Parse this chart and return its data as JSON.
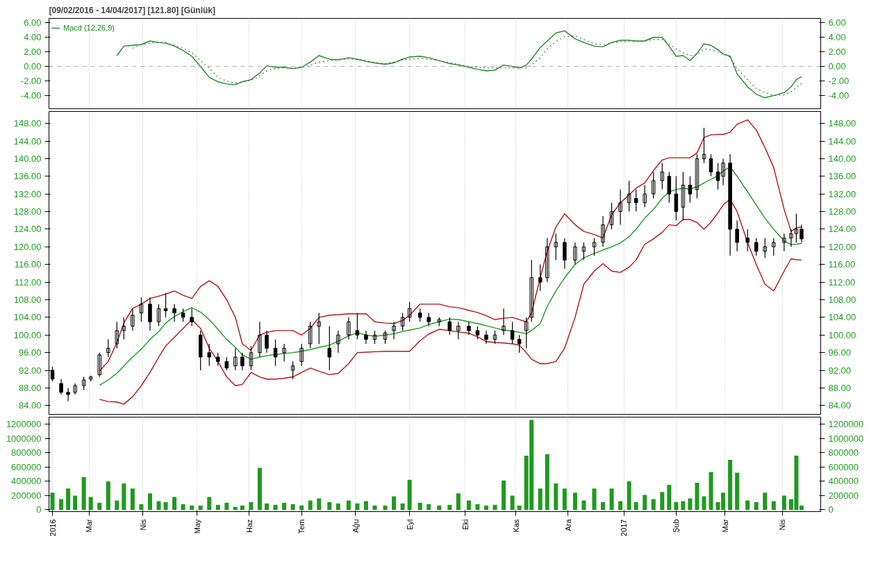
{
  "chart_data": [
    {
      "type": "line",
      "title": "[09/02/2016 - 14/04/2017] [121.80] [Günlük]",
      "x": [
        "2016-03-17",
        "2016-03-21",
        "2016-03-26",
        "2016-03-31",
        "2016-04-05",
        "2016-04-10",
        "2016-04-14",
        "2016-04-19",
        "2016-04-24",
        "2016-04-29",
        "2016-05-04",
        "2016-05-09",
        "2016-05-14",
        "2016-05-19",
        "2016-05-24",
        "2016-05-28",
        "2016-06-02",
        "2016-06-07",
        "2016-06-11",
        "2016-06-16",
        "2016-06-21",
        "2016-06-26",
        "2016-07-01",
        "2016-07-06",
        "2016-07-11",
        "2016-07-17",
        "2016-07-22",
        "2016-07-28",
        "2016-08-02",
        "2016-08-07",
        "2016-08-12",
        "2016-08-18",
        "2016-08-23",
        "2016-08-28",
        "2016-09-01",
        "2016-09-07",
        "2016-09-12",
        "2016-09-18",
        "2016-09-24",
        "2016-09-29",
        "2016-10-05",
        "2016-10-10",
        "2016-10-15",
        "2016-10-20",
        "2016-10-25",
        "2016-10-30",
        "2016-11-03",
        "2016-11-07",
        "2016-11-10",
        "2016-11-15",
        "2016-11-19",
        "2016-11-24",
        "2016-11-29",
        "2016-12-05",
        "2016-12-10",
        "2016-12-16",
        "2016-12-21",
        "2016-12-26",
        "2016-12-31",
        "2017-01-05",
        "2017-01-09",
        "2017-01-14",
        "2017-01-19",
        "2017-01-24",
        "2017-01-28",
        "2017-02-01",
        "2017-02-05",
        "2017-02-09",
        "2017-02-13",
        "2017-02-17",
        "2017-02-21",
        "2017-02-25",
        "2017-02-28",
        "2017-03-04",
        "2017-03-08",
        "2017-03-14",
        "2017-03-19",
        "2017-03-24",
        "2017-03-29",
        "2017-04-04",
        "2017-04-08",
        "2017-04-11",
        "2017-04-14"
      ],
      "series": [
        {
          "name": "Macd (12,26,9)",
          "color": "#1e8c1e",
          "values": [
            1.5,
            2.8,
            2.9,
            3.0,
            3.5,
            3.3,
            3.2,
            2.8,
            2.2,
            1.4,
            0.0,
            -1.5,
            -2.1,
            -2.4,
            -2.5,
            -2.1,
            -1.8,
            -0.9,
            0.1,
            -0.1,
            -0.1,
            -0.3,
            -0.1,
            0.6,
            1.5,
            1.0,
            0.9,
            1.2,
            1.0,
            0.7,
            0.5,
            0.3,
            0.5,
            1.0,
            1.3,
            1.4,
            1.2,
            0.8,
            0.4,
            0.2,
            -0.1,
            -0.4,
            -0.6,
            -0.5,
            0.2,
            0.0,
            -0.2,
            0.2,
            1.0,
            2.6,
            3.5,
            4.6,
            4.9,
            3.8,
            3.3,
            2.8,
            2.7,
            3.3,
            3.6,
            3.6,
            3.5,
            3.5,
            4.0,
            4.0,
            2.8,
            1.4,
            1.5,
            0.8,
            1.8,
            3.1,
            2.9,
            2.3,
            1.7,
            1.4,
            -1.0,
            -2.8,
            -3.8,
            -4.3,
            -4.0,
            -3.6,
            -2.8,
            -1.8,
            -1.4
          ]
        },
        {
          "color": "#555555",
          "line_style": "dotted",
          "values": [
            null,
            null,
            2.5,
            3.0,
            3.2,
            3.3,
            3.3,
            2.9,
            2.5,
            1.9,
            0.8,
            -0.2,
            -1.5,
            -2.0,
            -2.3,
            -2.1,
            -1.9,
            -1.3,
            -0.6,
            -0.3,
            -0.2,
            -0.2,
            -0.2,
            0.2,
            0.6,
            0.8,
            1.0,
            1.0,
            1.0,
            0.8,
            0.5,
            0.4,
            0.6,
            0.9,
            1.0,
            1.1,
            1.0,
            0.8,
            0.5,
            0.3,
            0.0,
            -0.1,
            -0.2,
            -0.2,
            -0.2,
            -0.2,
            -0.2,
            -0.2,
            0.2,
            1.2,
            2.4,
            3.4,
            4.1,
            4.2,
            3.7,
            3.1,
            3.0,
            3.2,
            3.4,
            3.4,
            3.4,
            3.5,
            3.7,
            3.7,
            3.1,
            2.4,
            1.9,
            1.5,
            1.6,
            2.4,
            2.3,
            2.0,
            1.8,
            1.3,
            -0.3,
            -1.8,
            -3.0,
            -3.6,
            -4.0,
            -3.9,
            -3.5,
            -2.9,
            -2.3
          ]
        }
      ],
      "legend": "top left",
      "ref_lines": [
        {
          "axis": "y",
          "value": 0,
          "color": "#aaaaaa",
          "line_style": "dashed"
        }
      ],
      "xlim": [
        "2016-02-07",
        "2017-04-25"
      ],
      "xticks": [
        "2016-03-01",
        "2016-04-01",
        "2016-05-02",
        "2016-06-01",
        "2016-07-01",
        "2016-08-01",
        "2016-09-01",
        "2016-10-03",
        "2016-11-01",
        "2016-12-01",
        "2017-01-02",
        "2017-02-01",
        "2017-03-01",
        "2017-04-03"
      ],
      "ylim": [
        -5.8,
        6.6
      ],
      "yticks": [
        {
          "value": -4,
          "label": "-4.00"
        },
        {
          "value": -2,
          "label": "-2.00"
        },
        {
          "value": 0,
          "label": "0.00"
        },
        {
          "value": 2,
          "label": "2.00"
        },
        {
          "value": 4,
          "label": "4.00"
        },
        {
          "value": 6,
          "label": "6.00"
        }
      ],
      "y2lim": [
        -5.8,
        6.6
      ],
      "y2ticks": [
        {
          "value": -4,
          "label": "-4.00"
        },
        {
          "value": -2,
          "label": "-2.00"
        },
        {
          "value": 0,
          "label": "0.00"
        },
        {
          "value": 2,
          "label": "2.00"
        },
        {
          "value": 4,
          "label": "4.00"
        },
        {
          "value": 6,
          "label": "6.00"
        }
      ],
      "grid": "x",
      "tick_labels": "y"
    },
    {
      "type": "candlestick",
      "color": "#000000",
      "x": [
        "2016-02-09",
        "2016-02-14",
        "2016-02-18",
        "2016-02-22",
        "2016-02-27",
        "2016-03-02",
        "2016-03-07",
        "2016-03-12",
        "2016-03-17",
        "2016-03-21",
        "2016-03-26",
        "2016-03-31",
        "2016-04-05",
        "2016-04-10",
        "2016-04-14",
        "2016-04-19",
        "2016-04-24",
        "2016-04-29",
        "2016-05-04",
        "2016-05-09",
        "2016-05-14",
        "2016-05-19",
        "2016-05-24",
        "2016-05-28",
        "2016-06-02",
        "2016-06-07",
        "2016-06-11",
        "2016-06-16",
        "2016-06-21",
        "2016-06-26",
        "2016-07-01",
        "2016-07-06",
        "2016-07-11",
        "2016-07-17",
        "2016-07-22",
        "2016-07-28",
        "2016-08-02",
        "2016-08-07",
        "2016-08-12",
        "2016-08-18",
        "2016-08-23",
        "2016-08-28",
        "2016-09-01",
        "2016-09-07",
        "2016-09-12",
        "2016-09-18",
        "2016-09-24",
        "2016-09-29",
        "2016-10-05",
        "2016-10-10",
        "2016-10-15",
        "2016-10-20",
        "2016-10-25",
        "2016-10-30",
        "2016-11-03",
        "2016-11-07",
        "2016-11-10",
        "2016-11-15",
        "2016-11-19",
        "2016-11-24",
        "2016-11-29",
        "2016-12-05",
        "2016-12-10",
        "2016-12-16",
        "2016-12-21",
        "2016-12-26",
        "2016-12-31",
        "2017-01-05",
        "2017-01-09",
        "2017-01-14",
        "2017-01-19",
        "2017-01-24",
        "2017-01-28",
        "2017-02-01",
        "2017-02-05",
        "2017-02-09",
        "2017-02-13",
        "2017-02-17",
        "2017-02-21",
        "2017-02-25",
        "2017-02-28",
        "2017-03-04",
        "2017-03-08",
        "2017-03-14",
        "2017-03-19",
        "2017-03-24",
        "2017-03-29",
        "2017-04-04",
        "2017-04-08",
        "2017-04-11",
        "2017-04-14"
      ],
      "ohlc": [
        [
          92,
          92.8,
          89.5,
          90
        ],
        [
          89,
          90,
          86.5,
          87
        ],
        [
          87,
          88,
          85,
          86.5
        ],
        [
          87,
          89,
          86.5,
          88.5
        ],
        [
          88.5,
          90.5,
          87.5,
          89.8
        ],
        [
          90,
          90.8,
          89.5,
          90.5
        ],
        [
          91,
          96,
          90.5,
          95.5
        ],
        [
          96,
          99,
          95,
          97
        ],
        [
          98,
          103,
          97,
          101
        ],
        [
          101,
          104,
          99,
          102
        ],
        [
          102,
          106,
          101,
          104.5
        ],
        [
          105,
          108.5,
          103,
          107
        ],
        [
          107,
          108.5,
          101,
          103
        ],
        [
          103,
          107,
          102,
          106
        ],
        [
          106,
          109.5,
          104,
          105.5
        ],
        [
          106,
          107,
          103,
          105
        ],
        [
          105,
          106,
          103,
          104
        ],
        [
          104,
          106,
          102,
          103
        ],
        [
          100,
          101,
          92,
          95
        ],
        [
          96,
          98,
          93,
          95
        ],
        [
          95,
          96,
          93,
          94
        ],
        [
          94,
          95,
          92,
          92.5
        ],
        [
          93,
          97,
          92,
          95
        ],
        [
          95,
          96,
          92,
          93
        ],
        [
          93,
          97.5,
          92,
          96
        ],
        [
          96,
          103,
          95,
          100
        ],
        [
          100,
          101,
          96,
          97
        ],
        [
          97,
          99,
          93,
          95
        ],
        [
          96,
          98,
          94,
          97
        ],
        [
          92,
          94,
          90,
          93
        ],
        [
          94,
          98,
          93,
          97
        ],
        [
          98,
          103,
          97,
          102
        ],
        [
          102,
          105,
          98,
          103
        ],
        [
          97,
          102,
          92,
          95
        ],
        [
          98,
          101,
          96,
          100
        ],
        [
          100,
          104,
          99,
          103
        ],
        [
          101,
          105,
          99,
          100
        ],
        [
          100,
          101,
          98,
          99
        ],
        [
          99,
          101,
          98,
          100
        ],
        [
          99,
          101,
          98,
          100.5
        ],
        [
          101,
          103,
          99,
          102
        ],
        [
          102,
          105,
          101,
          104
        ],
        [
          104,
          107.5,
          103,
          106
        ],
        [
          105,
          106,
          103,
          104
        ],
        [
          104,
          105,
          102,
          103
        ],
        [
          103,
          104,
          102,
          103.5
        ],
        [
          103,
          104,
          100,
          101
        ],
        [
          101,
          103,
          99,
          102
        ],
        [
          102,
          103,
          100,
          101
        ],
        [
          101,
          102,
          99,
          100
        ],
        [
          100,
          101,
          98,
          99
        ],
        [
          99,
          101,
          98,
          100
        ],
        [
          101,
          106,
          100,
          102
        ],
        [
          101,
          103,
          98,
          99
        ],
        [
          99,
          100,
          96,
          98
        ],
        [
          101,
          104,
          97,
          103
        ],
        [
          104,
          117,
          103,
          113
        ],
        [
          113,
          116,
          110,
          112
        ],
        [
          113,
          122,
          112,
          120
        ],
        [
          120,
          123,
          117,
          121
        ],
        [
          121,
          122,
          115,
          117
        ],
        [
          117,
          121,
          116,
          120
        ],
        [
          119,
          121,
          117,
          120
        ],
        [
          120,
          122,
          118,
          121
        ],
        [
          121,
          127,
          120,
          125
        ],
        [
          125,
          130,
          124,
          128
        ],
        [
          128,
          133,
          125,
          130
        ],
        [
          130,
          135,
          128,
          132
        ],
        [
          131,
          133,
          128,
          130
        ],
        [
          130,
          134,
          129,
          132
        ],
        [
          132,
          137,
          131,
          135
        ],
        [
          135,
          139,
          133,
          137
        ],
        [
          136,
          137,
          130,
          132
        ],
        [
          132,
          136,
          126,
          128
        ],
        [
          129,
          137,
          126,
          134
        ],
        [
          134,
          136,
          130,
          132
        ],
        [
          133,
          141,
          131,
          140
        ],
        [
          140,
          147,
          139,
          141
        ],
        [
          140,
          141,
          136,
          137
        ],
        [
          137,
          139,
          133,
          135
        ],
        [
          136,
          140,
          134,
          139
        ],
        [
          139,
          141,
          118,
          124
        ],
        [
          124,
          126,
          119,
          121
        ],
        [
          122,
          124,
          119,
          121
        ],
        [
          121,
          122,
          118,
          119
        ],
        [
          119,
          122,
          117.5,
          120
        ],
        [
          120,
          122,
          118,
          121
        ],
        [
          121,
          123,
          119,
          122
        ],
        [
          122,
          124,
          120,
          123
        ],
        [
          123,
          127.5,
          121,
          124
        ],
        [
          124,
          125,
          121,
          121.8
        ]
      ],
      "xticks": [
        "2016-03-01",
        "2016-04-01",
        "2016-05-02",
        "2016-06-01",
        "2016-07-01",
        "2016-08-01",
        "2016-09-01",
        "2016-10-03",
        "2016-11-01",
        "2016-12-01",
        "2017-01-02",
        "2017-02-01",
        "2017-03-01",
        "2017-04-03"
      ],
      "series": [
        {
          "type": "line",
          "color": "#b01515",
          "values": [
            null,
            null,
            null,
            null,
            null,
            null,
            91.8,
            94,
            98.3,
            102.7,
            106,
            107,
            108.3,
            108.8,
            109.3,
            110,
            109,
            108.3,
            111,
            112.3,
            111,
            108,
            104,
            98,
            96.5,
            100,
            100.6,
            101,
            101,
            101,
            100,
            101.5,
            104,
            104.5,
            104.6,
            104.8,
            104.8,
            104.8,
            103,
            102.7,
            102.6,
            103.3,
            104.5,
            107,
            107,
            107,
            106.4,
            106.2,
            105.6,
            105.1,
            104.4,
            103.5,
            103.8,
            104,
            103.5,
            103,
            105,
            113,
            119,
            124.5,
            127.5,
            125,
            123.5,
            122.8,
            122,
            127.3,
            130,
            131.8,
            133.3,
            134.5,
            137.3,
            139.7,
            140.2,
            140.2,
            140.2,
            140.2,
            141.3,
            144.8,
            145.4,
            145.5,
            145.5,
            146,
            147.8,
            148.8,
            146.5,
            142.5,
            138,
            128.5,
            123.5,
            124.3,
            124.5
          ]
        },
        {
          "type": "line",
          "color": "#1f9a1f",
          "values": [
            null,
            null,
            null,
            null,
            null,
            null,
            88.6,
            89.8,
            91.3,
            93,
            95,
            96.8,
            99,
            100.8,
            102.7,
            104.2,
            105.3,
            106.2,
            105.2,
            103.5,
            101.3,
            99,
            97.2,
            95.5,
            94.5,
            95,
            95.3,
            95.6,
            95.8,
            96,
            96.3,
            96.7,
            97.2,
            97.7,
            98.6,
            99.8,
            100.5,
            100,
            99.7,
            100,
            100.3,
            100.8,
            101.1,
            101.6,
            102.4,
            103,
            103.6,
            103.5,
            103,
            102.6,
            102.1,
            101.6,
            101.1,
            100.9,
            100.6,
            100.3,
            101,
            102.6,
            106.5,
            110,
            113,
            116,
            117.5,
            118.5,
            119.3,
            120,
            120.9,
            122.3,
            124,
            126.5,
            128.5,
            131,
            132.5,
            133,
            133.3,
            133.1,
            133.6,
            134.5,
            135.3,
            136.2,
            137.2,
            138.1,
            136,
            132.5,
            129.5,
            126.5,
            124,
            121.3,
            120.5,
            120.6,
            120.8
          ]
        },
        {
          "type": "line",
          "color": "#b01515",
          "values": [
            null,
            null,
            null,
            null,
            null,
            null,
            85.4,
            84.9,
            84.8,
            84.3,
            86,
            88.5,
            91.5,
            95,
            97.5,
            99.5,
            101.5,
            103.5,
            101.5,
            97,
            94,
            90.5,
            88.5,
            88.8,
            91.5,
            90.5,
            90,
            90,
            90.2,
            90.5,
            91.5,
            92.5,
            91.8,
            91,
            91.3,
            93.5,
            96,
            96.1,
            96.2,
            96.3,
            96.3,
            96.3,
            96.3,
            98.7,
            100.2,
            101.3,
            101,
            100.7,
            100.4,
            99.6,
            98.5,
            98.3,
            98.2,
            98,
            97.7,
            96,
            94.5,
            93.5,
            93.5,
            94,
            97,
            104,
            111.5,
            114.5,
            116.2,
            114.5,
            114.2,
            115.4,
            117,
            120.6,
            121.8,
            123.3,
            125,
            124.8,
            126.2,
            126.2,
            125.5,
            124,
            125.6,
            127.7,
            129.5,
            130.8,
            128,
            121,
            116,
            111.5,
            110,
            114.5,
            117.3,
            117.1,
            117
          ]
        }
      ],
      "xlim": [
        "2016-02-07",
        "2017-04-25"
      ],
      "ylim": [
        82,
        150.7
      ],
      "yticks": [
        {
          "value": 84,
          "label": "84.00"
        },
        {
          "value": 88,
          "label": "88.00"
        },
        {
          "value": 92,
          "label": "92.00"
        },
        {
          "value": 96,
          "label": "96.00"
        },
        {
          "value": 100,
          "label": "100.00"
        },
        {
          "value": 104,
          "label": "104.00"
        },
        {
          "value": 108,
          "label": "108.00"
        },
        {
          "value": 112,
          "label": "112.00"
        },
        {
          "value": 116,
          "label": "116.00"
        },
        {
          "value": 120,
          "label": "120.00"
        },
        {
          "value": 124,
          "label": "124.00"
        },
        {
          "value": 128,
          "label": "128.00"
        },
        {
          "value": 132,
          "label": "132.00"
        },
        {
          "value": 136,
          "label": "136.00"
        },
        {
          "value": 140,
          "label": "140.00"
        },
        {
          "value": 144,
          "label": "144.00"
        },
        {
          "value": 148,
          "label": "148.00"
        }
      ],
      "y2lim": [
        82,
        150.7
      ],
      "y2ticks": [
        {
          "value": 84,
          "label": "84.00"
        },
        {
          "value": 88,
          "label": "88.00"
        },
        {
          "value": 92,
          "label": "92.00"
        },
        {
          "value": 96,
          "label": "96.00"
        },
        {
          "value": 100,
          "label": "100.00"
        },
        {
          "value": 104,
          "label": "104.00"
        },
        {
          "value": 108,
          "label": "108.00"
        },
        {
          "value": 112,
          "label": "112.00"
        },
        {
          "value": 116,
          "label": "116.00"
        },
        {
          "value": 120,
          "label": "120.00"
        },
        {
          "value": 124,
          "label": "124.00"
        },
        {
          "value": 128,
          "label": "128.00"
        },
        {
          "value": 132,
          "label": "132.00"
        },
        {
          "value": 136,
          "label": "136.00"
        },
        {
          "value": 140,
          "label": "140.00"
        },
        {
          "value": 144,
          "label": "144.00"
        },
        {
          "value": 148,
          "label": "148.00"
        }
      ],
      "grid": "x",
      "tick_labels": "y"
    },
    {
      "type": "bar",
      "color": "#1f9a1f",
      "x": [
        "2016-02-09",
        "2016-02-14",
        "2016-02-18",
        "2016-02-22",
        "2016-02-27",
        "2016-03-02",
        "2016-03-07",
        "2016-03-12",
        "2016-03-17",
        "2016-03-21",
        "2016-03-26",
        "2016-03-31",
        "2016-04-05",
        "2016-04-10",
        "2016-04-14",
        "2016-04-19",
        "2016-04-24",
        "2016-04-29",
        "2016-05-04",
        "2016-05-09",
        "2016-05-14",
        "2016-05-19",
        "2016-05-24",
        "2016-05-28",
        "2016-06-02",
        "2016-06-07",
        "2016-06-11",
        "2016-06-16",
        "2016-06-21",
        "2016-06-26",
        "2016-07-01",
        "2016-07-06",
        "2016-07-11",
        "2016-07-17",
        "2016-07-22",
        "2016-07-28",
        "2016-08-02",
        "2016-08-07",
        "2016-08-12",
        "2016-08-18",
        "2016-08-23",
        "2016-08-28",
        "2016-09-01",
        "2016-09-07",
        "2016-09-12",
        "2016-09-18",
        "2016-09-24",
        "2016-09-29",
        "2016-10-05",
        "2016-10-10",
        "2016-10-15",
        "2016-10-20",
        "2016-10-25",
        "2016-10-30",
        "2016-11-03",
        "2016-11-07",
        "2016-11-10",
        "2016-11-15",
        "2016-11-19",
        "2016-11-24",
        "2016-11-29",
        "2016-12-05",
        "2016-12-10",
        "2016-12-16",
        "2016-12-21",
        "2016-12-26",
        "2016-12-31",
        "2017-01-05",
        "2017-01-09",
        "2017-01-14",
        "2017-01-19",
        "2017-01-24",
        "2017-01-28",
        "2017-02-01",
        "2017-02-05",
        "2017-02-09",
        "2017-02-13",
        "2017-02-17",
        "2017-02-21",
        "2017-02-25",
        "2017-02-28",
        "2017-03-04",
        "2017-03-08",
        "2017-03-14",
        "2017-03-19",
        "2017-03-24",
        "2017-03-29",
        "2017-04-04",
        "2017-04-08",
        "2017-04-11",
        "2017-04-14"
      ],
      "values": [
        240000,
        150000,
        300000,
        200000,
        460000,
        180000,
        100000,
        400000,
        130000,
        370000,
        300000,
        80000,
        230000,
        120000,
        110000,
        180000,
        80000,
        60000,
        60000,
        180000,
        70000,
        100000,
        40000,
        60000,
        110000,
        590000,
        90000,
        70000,
        100000,
        80000,
        60000,
        130000,
        160000,
        110000,
        90000,
        130000,
        90000,
        120000,
        60000,
        60000,
        190000,
        90000,
        420000,
        100000,
        80000,
        60000,
        70000,
        230000,
        130000,
        80000,
        60000,
        70000,
        410000,
        200000,
        60000,
        760000,
        1260000,
        300000,
        780000,
        370000,
        300000,
        240000,
        130000,
        300000,
        110000,
        300000,
        120000,
        400000,
        110000,
        210000,
        150000,
        250000,
        350000,
        110000,
        120000,
        160000,
        380000,
        190000,
        530000,
        110000,
        240000,
        700000,
        520000,
        130000,
        110000,
        240000,
        120000,
        200000,
        150000,
        760000,
        60000
      ],
      "xlim": [
        "2016-02-07",
        "2017-04-25"
      ],
      "xticks": [
        {
          "value": "2016-02-09",
          "label": "2016"
        },
        {
          "value": "2016-03-01",
          "label": "Mar"
        },
        {
          "value": "2016-04-01",
          "label": "Nis"
        },
        {
          "value": "2016-05-02",
          "label": "May"
        },
        {
          "value": "2016-06-01",
          "label": "Haz"
        },
        {
          "value": "2016-07-01",
          "label": "Tem"
        },
        {
          "value": "2016-08-01",
          "label": "Ağu"
        },
        {
          "value": "2016-09-01",
          "label": "Eyl"
        },
        {
          "value": "2016-10-03",
          "label": "Eki"
        },
        {
          "value": "2016-11-01",
          "label": "Kas"
        },
        {
          "value": "2016-12-01",
          "label": "Ara"
        },
        {
          "value": "2017-01-02",
          "label": "2017"
        },
        {
          "value": "2017-02-01",
          "label": "Şub"
        },
        {
          "value": "2017-03-01",
          "label": "Mar"
        },
        {
          "value": "2017-04-03",
          "label": "Nis"
        }
      ],
      "ylim": [
        -25000,
        1300000
      ],
      "yticks": [
        0,
        200000,
        400000,
        600000,
        800000,
        1000000,
        1200000
      ],
      "y2lim": [
        -25000,
        1300000
      ],
      "y2ticks": [
        0,
        200000,
        400000,
        600000,
        800000,
        1000000,
        1200000
      ],
      "grid": "x"
    }
  ]
}
